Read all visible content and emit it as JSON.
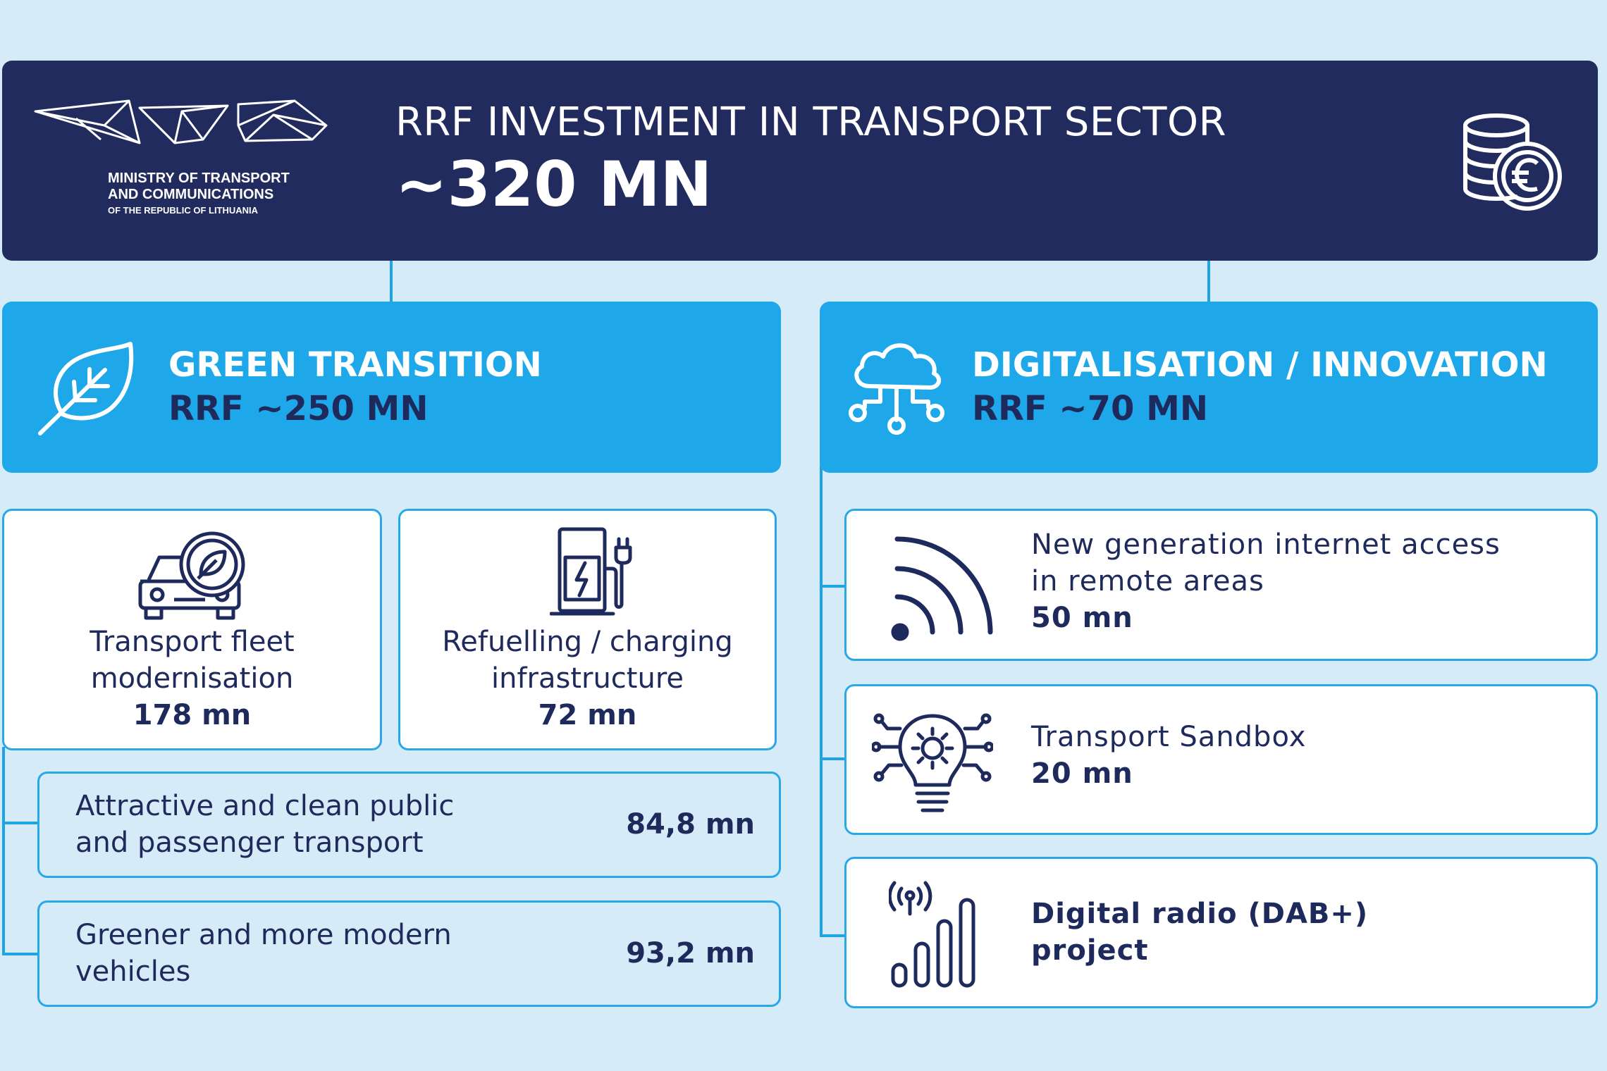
{
  "header": {
    "ministry_line1": "MINISTRY OF TRANSPORT",
    "ministry_line2": "AND COMMUNICATIONS",
    "ministry_line3": "OF THE REPUBLIC OF LITHUANIA",
    "title": "RRF INVESTMENT IN TRANSPORT SECTOR",
    "amount": "~320 MN",
    "icon": "euro-coins-icon"
  },
  "green": {
    "title": "GREEN TRANSITION",
    "amount": "RRF ~250 MN",
    "icon": "leaf-icon",
    "cards": [
      {
        "label_line1": "Transport fleet",
        "label_line2": "modernisation",
        "value": "178 mn",
        "icon": "eco-car-icon"
      },
      {
        "label_line1": "Refuelling / charging",
        "label_line2": "infrastructure",
        "value": "72 mn",
        "icon": "charging-station-icon"
      }
    ],
    "rows": [
      {
        "label_line1": "Attractive and clean public",
        "label_line2": "and passenger transport",
        "value": "84,8 mn"
      },
      {
        "label_line1": "Greener and more modern",
        "label_line2": "vehicles",
        "value": "93,2 mn"
      }
    ]
  },
  "digital": {
    "title": "DIGITALISATION / INNOVATION",
    "amount": "RRF ~70 MN",
    "icon": "cloud-network-icon",
    "items": [
      {
        "label_line1": "New generation internet access",
        "label_line2": "in remote areas",
        "value": "50 mn",
        "icon": "wifi-signal-icon"
      },
      {
        "label_line1": "Transport Sandbox",
        "value": "20 mn",
        "icon": "lightbulb-gear-icon"
      },
      {
        "label_line1": "Digital radio (DAB+)",
        "label_line2": "project",
        "icon": "radio-signal-bars-icon"
      }
    ]
  },
  "colors": {
    "background": "#d6ebf8",
    "header": "#212b5e",
    "accent": "#1ea8ea",
    "text": "#1f2a5c"
  }
}
